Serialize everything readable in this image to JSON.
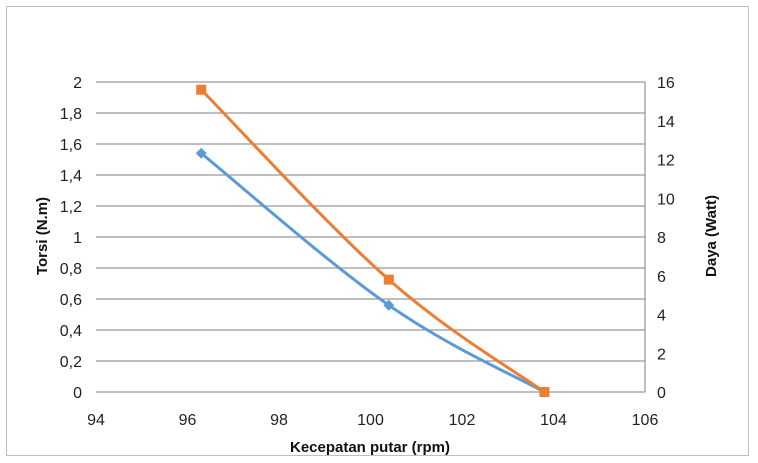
{
  "chart_data": {
    "type": "line",
    "xlabel": "Kecepatan putar (rpm)",
    "ylabel": "Torsi (N.m)",
    "y2label": "Daya (Watt)",
    "xlim": [
      94,
      106
    ],
    "ylim": [
      0,
      2
    ],
    "y2lim": [
      0,
      16
    ],
    "x_ticks": [
      "94",
      "96",
      "98",
      "100",
      "102",
      "104",
      "106"
    ],
    "y_ticks": [
      "0",
      "0,2",
      "0,4",
      "0,6",
      "0,8",
      "1",
      "1,2",
      "1,4",
      "1,6",
      "1,8",
      "2"
    ],
    "y2_ticks": [
      "0",
      "2",
      "4",
      "6",
      "8",
      "10",
      "12",
      "14",
      "16"
    ],
    "grid": "horizontal",
    "series": [
      {
        "axis": "left",
        "color": "#5b9bd5",
        "marker": "diamond",
        "points": [
          [
            96.3,
            1.54
          ],
          [
            100.4,
            0.56
          ],
          [
            103.8,
            0.0
          ]
        ]
      },
      {
        "axis": "right",
        "color": "#ed7d31",
        "marker": "square",
        "points": [
          [
            96.3,
            15.6
          ],
          [
            100.4,
            5.8
          ],
          [
            103.8,
            0.0
          ]
        ]
      }
    ]
  }
}
